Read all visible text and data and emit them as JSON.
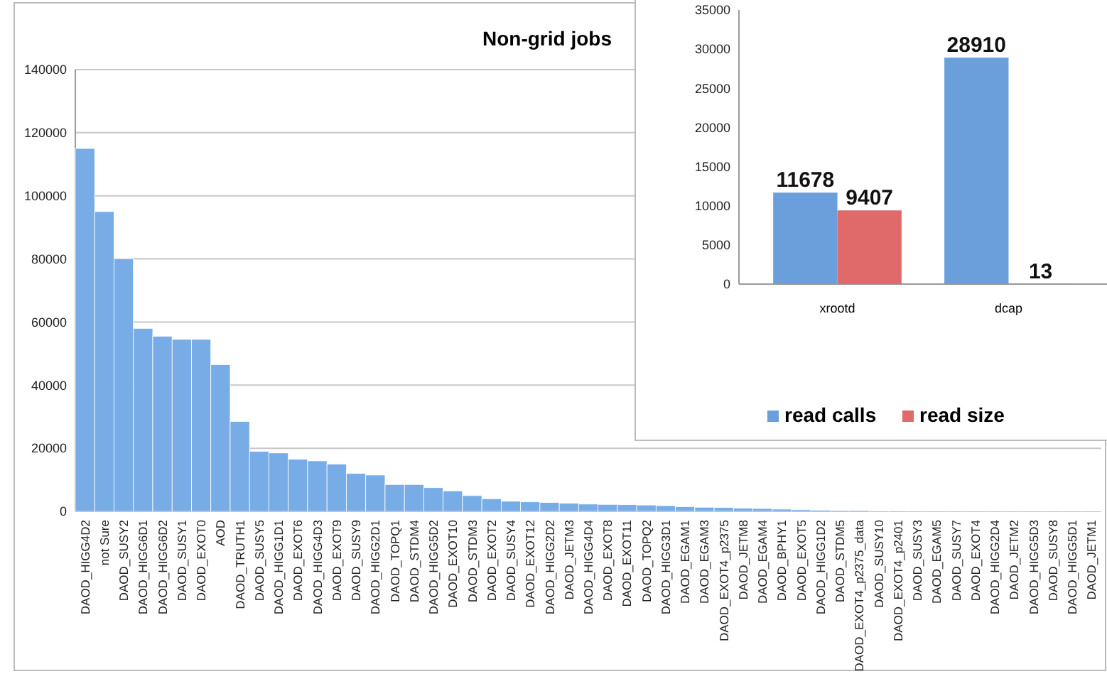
{
  "chart_data": [
    {
      "type": "bar",
      "title": "Non-grid jobs",
      "categories": [
        "DAOD_HIGG4D2",
        "not Sure",
        "DAOD_SUSY2",
        "DAOD_HIGG6D1",
        "DAOD_HIGG6D2",
        "DAOD_SUSY1",
        "DAOD_EXOT0",
        "AOD",
        "DAOD_TRUTH1",
        "DAOD_SUSY5",
        "DAOD_HIGG1D1",
        "DAOD_EXOT6",
        "DAOD_HIGG4D3",
        "DAOD_EXOT9",
        "DAOD_SUSY9",
        "DAOD_HIGG2D1",
        "DAOD_TOPQ1",
        "DAOD_STDM4",
        "DAOD_HIGG5D2",
        "DAOD_EXOT10",
        "DAOD_STDM3",
        "DAOD_EXOT2",
        "DAOD_SUSY4",
        "DAOD_EXOT12",
        "DAOD_HIGG2D2",
        "DAOD_JETM3",
        "DAOD_HIGG4D4",
        "DAOD_EXOT8",
        "DAOD_EXOT11",
        "DAOD_TOPQ2",
        "DAOD_HIGG3D1",
        "DAOD_EGAM1",
        "DAOD_EGAM3",
        "DAOD_EXOT4_p2375",
        "DAOD_JETM8",
        "DAOD_EGAM4",
        "DAOD_BPHY1",
        "DAOD_EXOT5",
        "DAOD_HIGG1D2",
        "DAOD_STDM5",
        "DAOD_EXOT4_p2375_data",
        "DAOD_SUSY10",
        "DAOD_EXOT4_p2401",
        "DAOD_SUSY3",
        "DAOD_EGAM5",
        "DAOD_SUSY7",
        "DAOD_EXOT4",
        "DAOD_HIGG2D4",
        "DAOD_JETM2",
        "DAOD_HIGG5D3",
        "DAOD_SUSY8",
        "DAOD_HIGG5D1",
        "DAOD_JETM1"
      ],
      "values": [
        115000,
        95000,
        80000,
        58000,
        55500,
        54500,
        54500,
        46500,
        28500,
        19000,
        18500,
        16500,
        16000,
        15000,
        12000,
        11500,
        8500,
        8500,
        7500,
        6500,
        5000,
        4000,
        3200,
        3000,
        2800,
        2600,
        2300,
        2200,
        2100,
        2000,
        1800,
        1500,
        1300,
        1200,
        1000,
        900,
        700,
        500,
        400,
        300,
        300,
        200,
        200,
        100,
        100,
        100,
        100,
        100,
        100,
        100,
        100,
        100,
        100
      ],
      "color": "#78ace6",
      "ylim": [
        0,
        140000
      ],
      "yticks": [
        0,
        20000,
        40000,
        60000,
        80000,
        100000,
        120000,
        140000
      ],
      "grid": "y"
    },
    {
      "type": "bar",
      "categories": [
        "xrootd",
        "dcap"
      ],
      "series": [
        {
          "name": "read calls",
          "color": "#6a9fdc",
          "values": [
            11678,
            28910
          ]
        },
        {
          "name": "read size",
          "color": "#e06a6a",
          "values": [
            9407,
            13
          ]
        }
      ],
      "ylim": [
        0,
        35000
      ],
      "yticks": [
        0,
        5000,
        10000,
        15000,
        20000,
        25000,
        30000,
        35000
      ],
      "data_labels": true,
      "legend": "bottom"
    }
  ]
}
